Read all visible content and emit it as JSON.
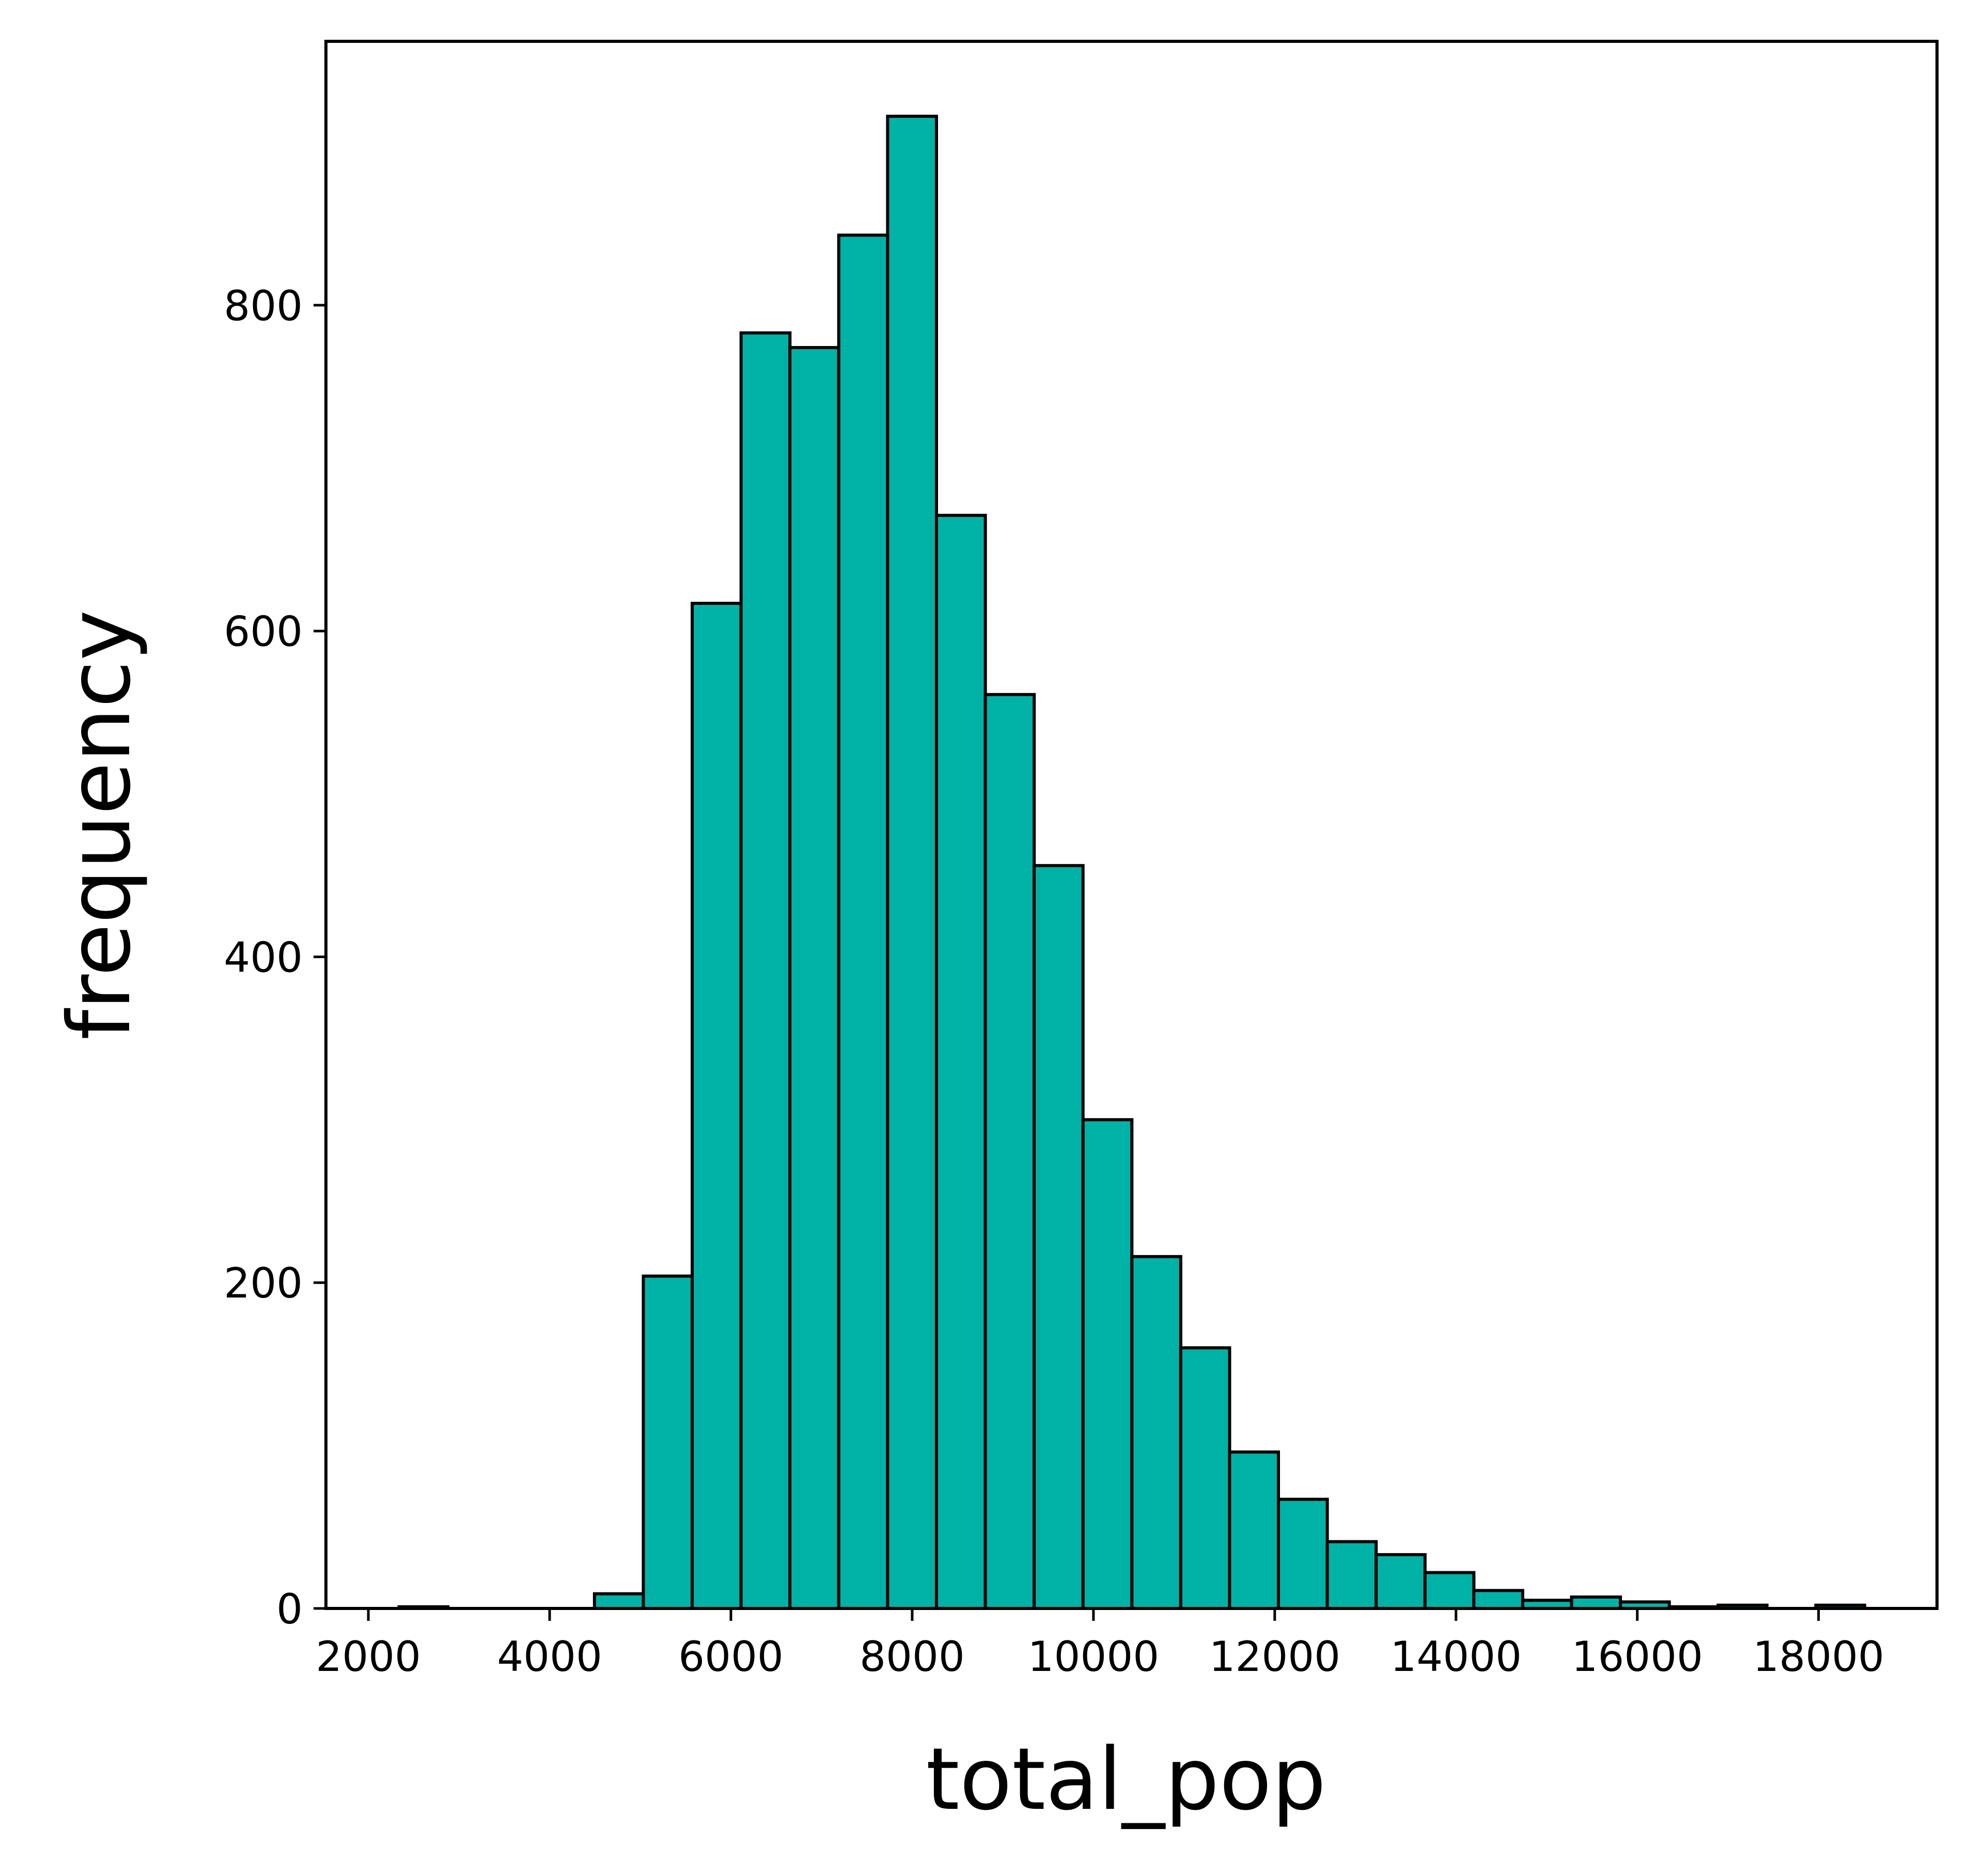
{
  "chart_data": {
    "type": "bar",
    "title": "",
    "xlabel": "total_pop",
    "ylabel": "frequency",
    "xlim": [
      1532,
      19307
    ],
    "ylim": [
      0,
      962
    ],
    "xticks": [
      2000,
      4000,
      6000,
      8000,
      10000,
      12000,
      14000,
      16000,
      18000
    ],
    "yticks": [
      0,
      200,
      400,
      600,
      800
    ],
    "grid": false,
    "bar_color": "#00b2a6",
    "edge_color": "#000000",
    "bins": [
      {
        "x0": 2339,
        "x1": 2878,
        "count": 1
      },
      {
        "x0": 2878,
        "x1": 3417,
        "count": 0
      },
      {
        "x0": 3417,
        "x1": 3956,
        "count": 0
      },
      {
        "x0": 3956,
        "x1": 4495,
        "count": 0
      },
      {
        "x0": 4495,
        "x1": 5034,
        "count": 9
      },
      {
        "x0": 5034,
        "x1": 5573,
        "count": 204
      },
      {
        "x0": 5573,
        "x1": 6112,
        "count": 617
      },
      {
        "x0": 6112,
        "x1": 6651,
        "count": 783
      },
      {
        "x0": 6651,
        "x1": 7190,
        "count": 774
      },
      {
        "x0": 7190,
        "x1": 7729,
        "count": 843
      },
      {
        "x0": 7729,
        "x1": 8268,
        "count": 916
      },
      {
        "x0": 8268,
        "x1": 8807,
        "count": 671
      },
      {
        "x0": 8807,
        "x1": 9346,
        "count": 561
      },
      {
        "x0": 9346,
        "x1": 9885,
        "count": 456
      },
      {
        "x0": 9885,
        "x1": 10424,
        "count": 300
      },
      {
        "x0": 10424,
        "x1": 10963,
        "count": 216
      },
      {
        "x0": 10963,
        "x1": 11502,
        "count": 160
      },
      {
        "x0": 11502,
        "x1": 12041,
        "count": 96
      },
      {
        "x0": 12041,
        "x1": 12580,
        "count": 67
      },
      {
        "x0": 12580,
        "x1": 13119,
        "count": 41
      },
      {
        "x0": 13119,
        "x1": 13658,
        "count": 33
      },
      {
        "x0": 13658,
        "x1": 14197,
        "count": 22
      },
      {
        "x0": 14197,
        "x1": 14736,
        "count": 11
      },
      {
        "x0": 14736,
        "x1": 15275,
        "count": 5
      },
      {
        "x0": 15275,
        "x1": 15814,
        "count": 7
      },
      {
        "x0": 15814,
        "x1": 16353,
        "count": 4
      },
      {
        "x0": 16353,
        "x1": 16892,
        "count": 1
      },
      {
        "x0": 16892,
        "x1": 17431,
        "count": 2
      },
      {
        "x0": 17431,
        "x1": 17970,
        "count": 0
      },
      {
        "x0": 17970,
        "x1": 18509,
        "count": 2
      }
    ]
  }
}
